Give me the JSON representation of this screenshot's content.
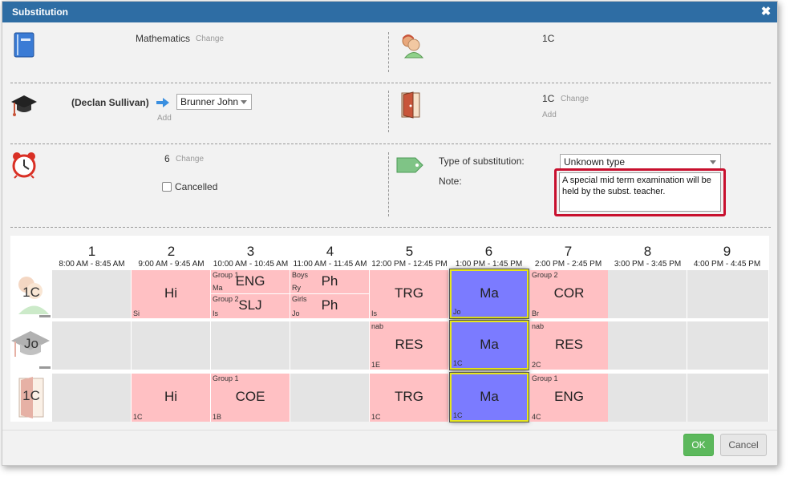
{
  "dialog": {
    "title": "Substitution"
  },
  "subject": {
    "value": "Mathematics",
    "change": "Change"
  },
  "klass": {
    "value": "1C"
  },
  "teacher": {
    "original": "(Declan Sullivan)",
    "substitute": "Brunner John",
    "add": "Add"
  },
  "room": {
    "value": "1C",
    "change": "Change",
    "add": "Add"
  },
  "period": {
    "value": "6",
    "change": "Change",
    "cancelled_label": "Cancelled"
  },
  "substitution": {
    "type_label": "Type of substitution:",
    "type_value": "Unknown type",
    "note_label": "Note:",
    "note_value": "A special mid term examination will be held by the subst. teacher."
  },
  "timetable": {
    "periods": [
      {
        "num": "1",
        "time": "8:00 AM - 8:45 AM"
      },
      {
        "num": "2",
        "time": "9:00 AM - 9:45 AM"
      },
      {
        "num": "3",
        "time": "10:00 AM - 10:45 AM"
      },
      {
        "num": "4",
        "time": "11:00 AM - 11:45 AM"
      },
      {
        "num": "5",
        "time": "12:00 PM - 12:45 PM"
      },
      {
        "num": "6",
        "time": "1:00 PM - 1:45 PM"
      },
      {
        "num": "7",
        "time": "2:00 PM - 2:45 PM"
      },
      {
        "num": "8",
        "time": "3:00 PM - 3:45 PM"
      },
      {
        "num": "9",
        "time": "4:00 PM - 4:45 PM"
      }
    ],
    "rows": [
      "1C",
      "Jo",
      "1C"
    ],
    "r1": {
      "p2": {
        "big": "Hi",
        "bl": "Si"
      },
      "p3": {
        "tl": "Group 1",
        "ml1": "Ma",
        "big1": "ENG",
        "ml2": "Group 2",
        "bl": "Is",
        "big2": "SLJ"
      },
      "p4": {
        "tl": "Boys",
        "ml1": "Ry",
        "big1": "Ph",
        "ml2": "Girls",
        "bl": "Jo",
        "big2": "Ph"
      },
      "p5": {
        "big": "TRG",
        "bl": "Is"
      },
      "p6": {
        "big": "Ma",
        "bl": "Jo"
      },
      "p7": {
        "tl": "Group 2",
        "big": "COR",
        "bl": "Br"
      }
    },
    "r2": {
      "p5": {
        "tl": "nab",
        "big": "RES",
        "bl": "1E"
      },
      "p6": {
        "big": "Ma",
        "bl": "1C"
      },
      "p7": {
        "tl": "nab",
        "big": "RES",
        "bl": "2C"
      }
    },
    "r3": {
      "p2": {
        "big": "Hi",
        "bl": "1C"
      },
      "p3": {
        "tl": "Group 1",
        "big": "COE",
        "bl": "1B"
      },
      "p5": {
        "big": "TRG",
        "bl": "1C"
      },
      "p6": {
        "big": "Ma",
        "bl": "1C"
      },
      "p7": {
        "tl": "Group 1",
        "big": "ENG",
        "bl": "4C"
      }
    }
  },
  "buttons": {
    "ok": "OK",
    "cancel": "Cancel"
  },
  "colors": {
    "title_bar": "#2e6da4",
    "lesson": "#ffc0c3",
    "selected_lesson": "#7b7bff",
    "ok_button": "#5cb85c",
    "note_highlight": "#c8102e"
  }
}
